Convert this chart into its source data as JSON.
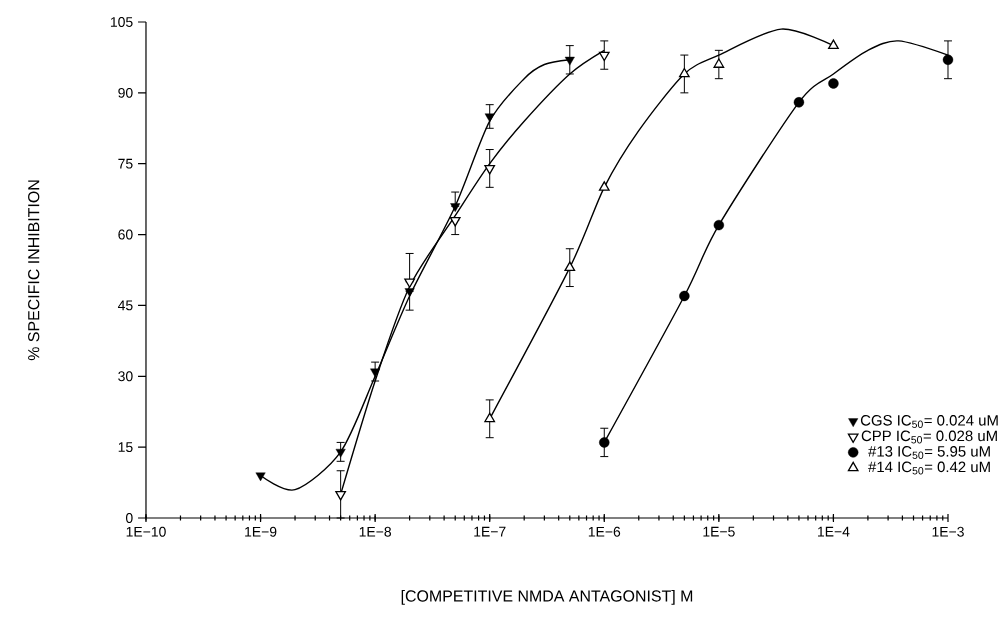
{
  "chart_data": {
    "type": "scatter",
    "xlabel": "[COMPETITIVE NMDA ANTAGONIST] M",
    "ylabel": "% SPECIFIC INHIBITION",
    "log": "x",
    "xlim": [
      1e-10,
      0.001
    ],
    "ylim": [
      0,
      105
    ],
    "xticks": [
      {
        "value": 1e-10,
        "label": "1E−10"
      },
      {
        "value": 1e-09,
        "label": "1E−9"
      },
      {
        "value": 1e-08,
        "label": "1E−8"
      },
      {
        "value": 1e-07,
        "label": "1E−7"
      },
      {
        "value": 1e-06,
        "label": "1E−6"
      },
      {
        "value": 1e-05,
        "label": "1E−5"
      },
      {
        "value": 0.0001,
        "label": "1E−4"
      },
      {
        "value": 0.001,
        "label": "1E−3"
      }
    ],
    "yticks": [
      0,
      15,
      30,
      45,
      60,
      75,
      90,
      105
    ],
    "grid": false,
    "legend": "bottom right",
    "series": [
      {
        "name": "CGS  IC$_{50}$= 0.024 uM",
        "marker": "triangle-down",
        "color": "#000000",
        "x": [
          1e-09,
          5e-09,
          1e-08,
          2e-08,
          5e-08,
          1e-07,
          5e-07
        ],
        "values": [
          9,
          14,
          31,
          48,
          66,
          85,
          97
        ],
        "errors": [
          null,
          2,
          2,
          [
            44,
            48
          ],
          [
            66,
            69
          ],
          2.5,
          3
        ]
      },
      {
        "name": "CPP  IC$_{50}$= 0.028 uM",
        "marker": "triangle-down-open",
        "color": "#000000",
        "x": [
          5e-09,
          2e-08,
          5e-08,
          1e-07,
          1e-06
        ],
        "values": [
          5,
          50,
          63,
          74,
          98
        ],
        "errors": [
          5,
          [
            50,
            56
          ],
          [
            60,
            63
          ],
          4,
          3
        ]
      },
      {
        "name": "#13  IC$_{50}$= 5.95  uM",
        "marker": "circle",
        "color": "#000000",
        "x": [
          1e-06,
          5e-06,
          1e-05,
          5e-05,
          0.0001,
          0.001
        ],
        "values": [
          16,
          47,
          62,
          88,
          92,
          97
        ],
        "errors": [
          3,
          null,
          null,
          null,
          null,
          4
        ]
      },
      {
        "name": "#14  IC$_{50}$= 0.42  uM",
        "marker": "triangle-open",
        "color": "#000000",
        "x": [
          1e-07,
          5e-07,
          1e-06,
          5e-06,
          1e-05,
          0.0001
        ],
        "values": [
          21,
          53,
          70,
          94,
          96,
          100
        ],
        "errors": [
          4,
          4,
          null,
          4,
          3,
          null
        ]
      },
      {
        "type": "line",
        "marker": "none",
        "color": "#000000",
        "x": [
          1e-09,
          2e-09,
          5e-09,
          1e-08,
          2e-08,
          5e-08,
          1e-07,
          2e-07,
          3e-07,
          5e-07
        ],
        "values": [
          9,
          6,
          14,
          30,
          47,
          66,
          84,
          93,
          96,
          97
        ]
      },
      {
        "type": "line",
        "marker": "none",
        "color": "#000000",
        "x": [
          5e-09,
          1e-08,
          2e-08,
          5e-08,
          1e-07,
          2e-07,
          5e-07,
          1e-06
        ],
        "values": [
          5,
          29,
          49,
          64,
          75,
          84,
          94,
          99
        ]
      },
      {
        "type": "line",
        "marker": "none",
        "color": "#000000",
        "x": [
          1e-06,
          5e-06,
          1e-05,
          5e-05,
          0.0001,
          0.0002,
          0.00037,
          0.001
        ],
        "values": [
          16,
          47,
          62,
          88,
          94,
          99,
          101,
          98
        ]
      },
      {
        "type": "line",
        "marker": "none",
        "color": "#000000",
        "x": [
          1e-07,
          5e-07,
          1e-06,
          2e-06,
          5e-06,
          1e-05,
          3.5e-05,
          0.0001
        ],
        "values": [
          21,
          53,
          70,
          82,
          94,
          98,
          103.5,
          100
        ]
      }
    ]
  }
}
